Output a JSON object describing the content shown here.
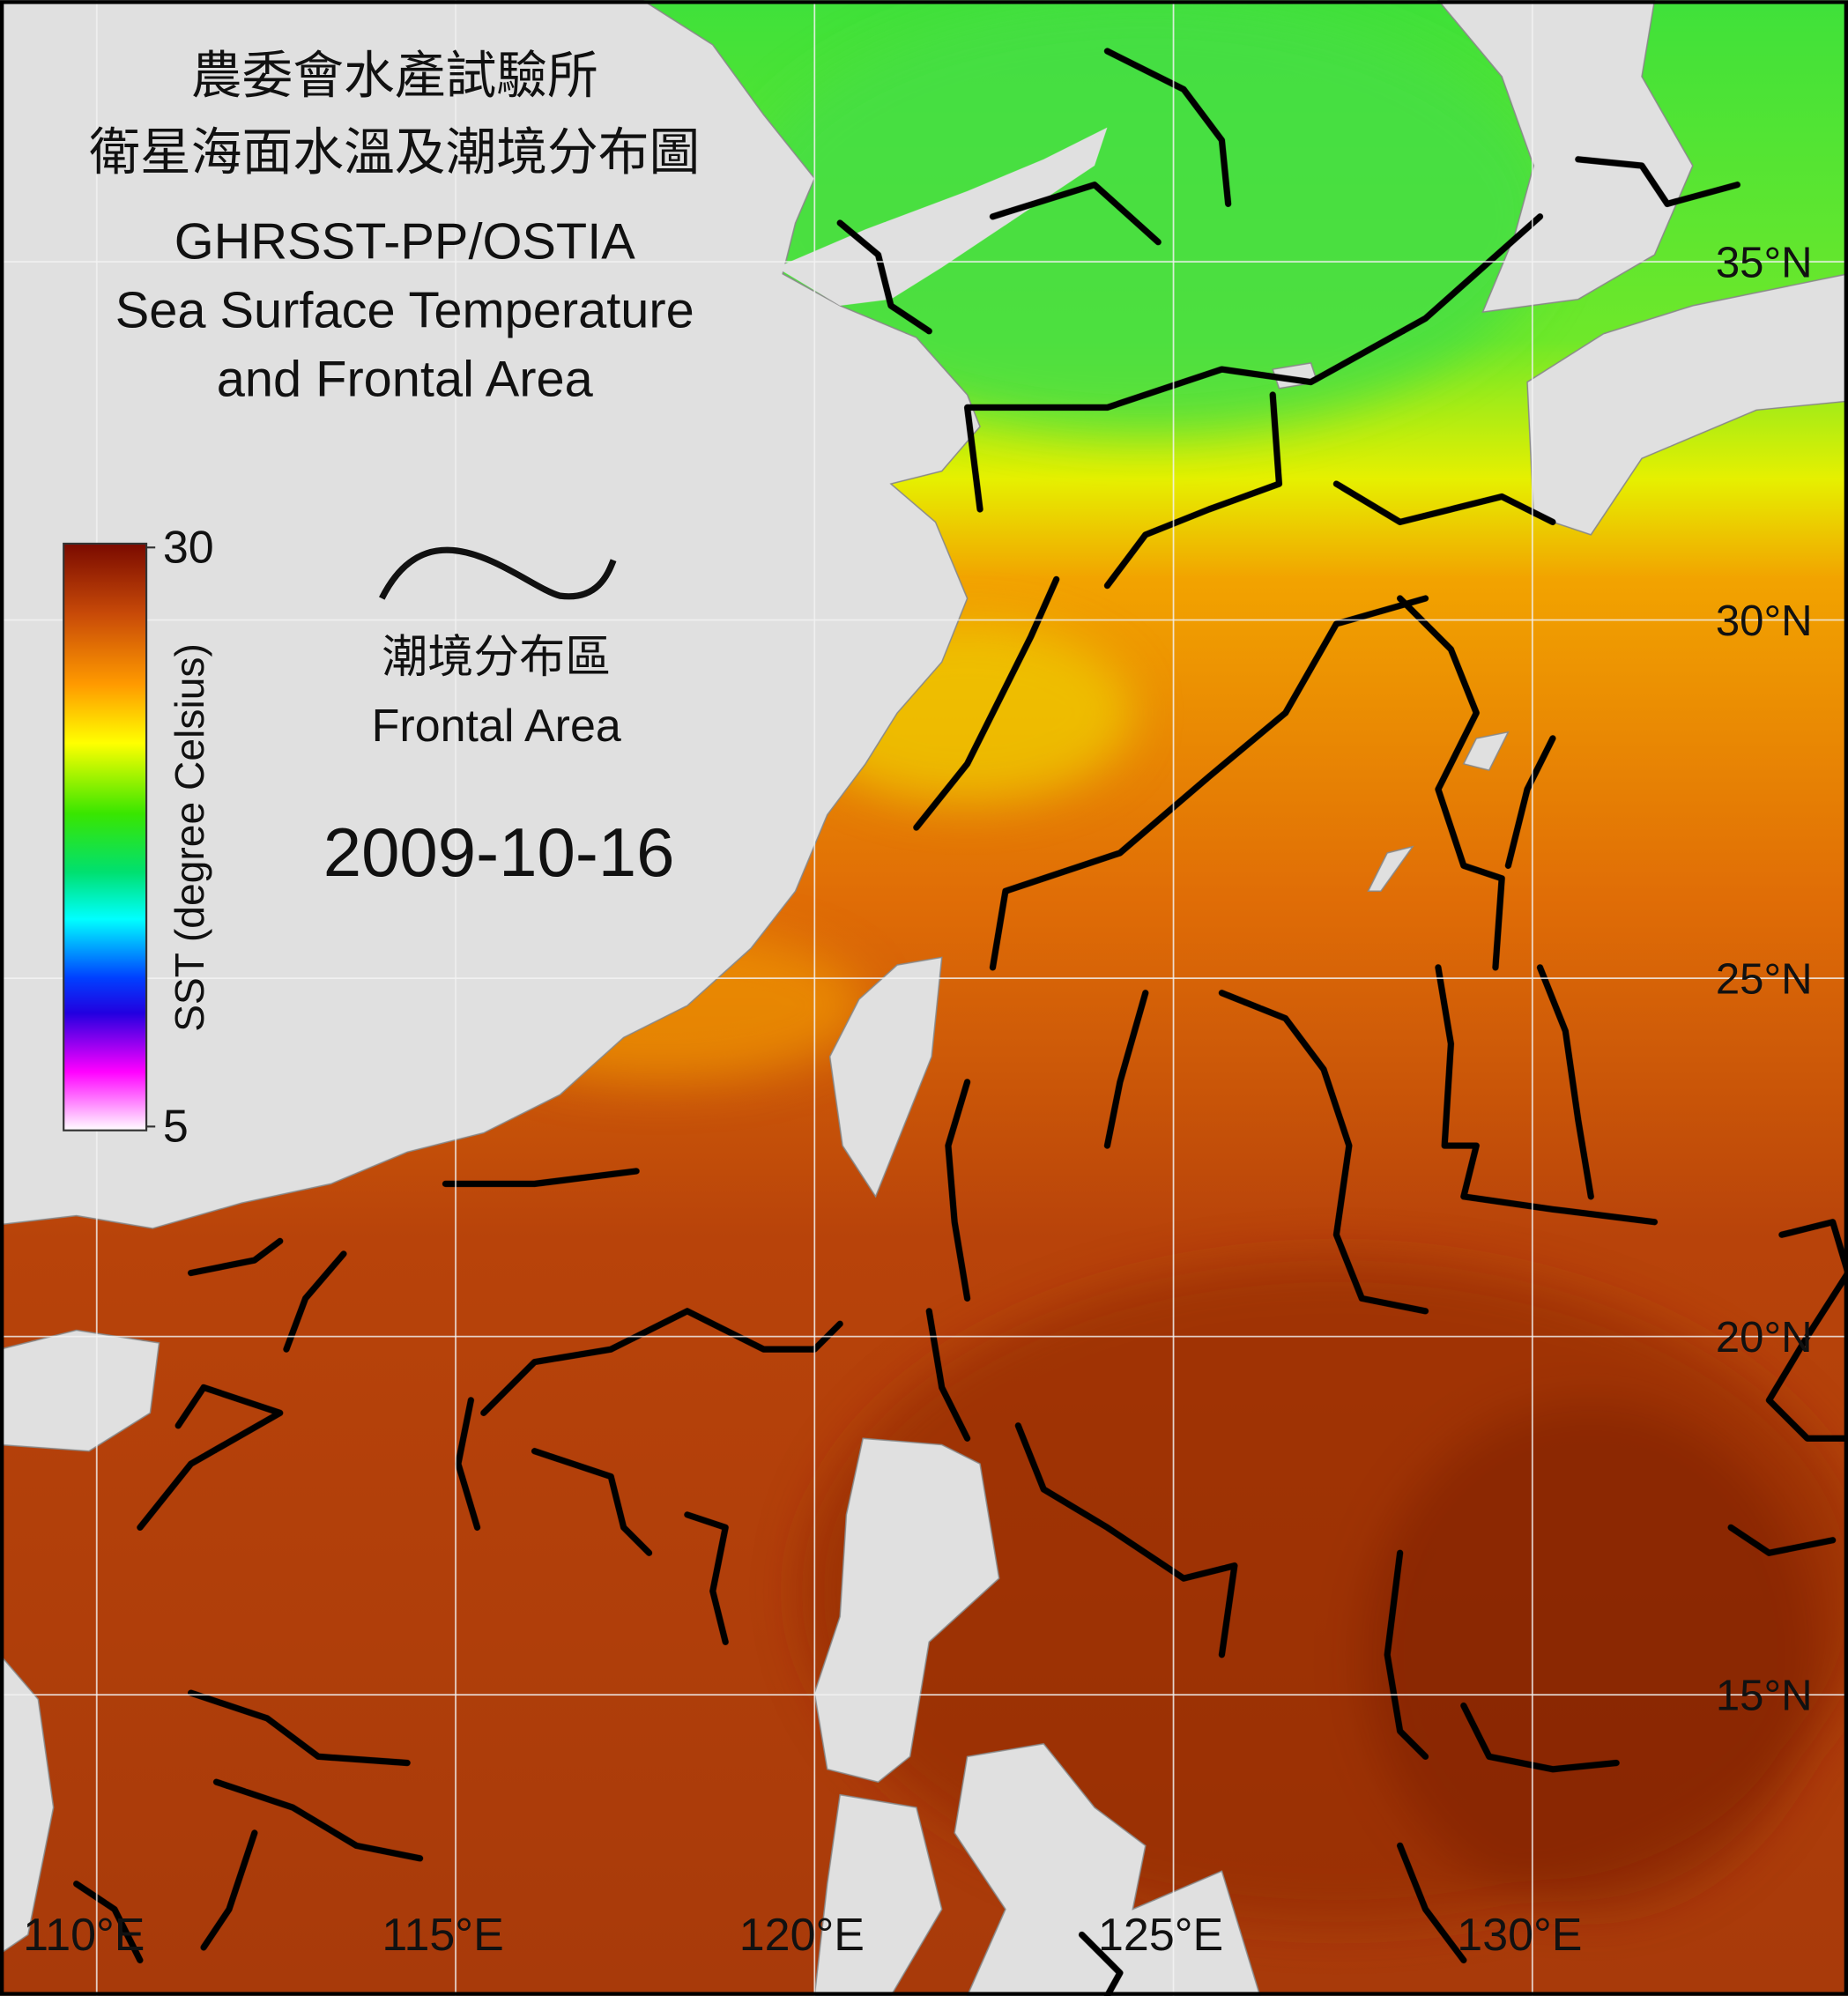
{
  "header": {
    "title": [
      "農委會水產試驗所",
      "衛星海面水溫及潮境分布圖",
      "GHRSST-PP/OSTIA",
      "Sea Surface Temperature",
      "and Frontal Area"
    ]
  },
  "colorbar": {
    "label": "SST (degree Celsius)",
    "range": [
      5,
      30
    ],
    "ticks": [
      5,
      30
    ]
  },
  "legend": {
    "label_zh": "潮境分布區",
    "label_en": "Frontal Area"
  },
  "date": "2009-10-16",
  "graticule": {
    "lon": [
      {
        "value": 110,
        "label": "110°E"
      },
      {
        "value": 115,
        "label": "115°E"
      },
      {
        "value": 120,
        "label": "120°E"
      },
      {
        "value": 125,
        "label": "125°E"
      },
      {
        "value": 130,
        "label": "130°E"
      }
    ],
    "lat": [
      {
        "value": 35,
        "label": "35°N"
      },
      {
        "value": 30,
        "label": "30°N"
      },
      {
        "value": 25,
        "label": "25°N"
      },
      {
        "value": 20,
        "label": "20°N"
      },
      {
        "value": 15,
        "label": "15°N"
      }
    ]
  }
}
